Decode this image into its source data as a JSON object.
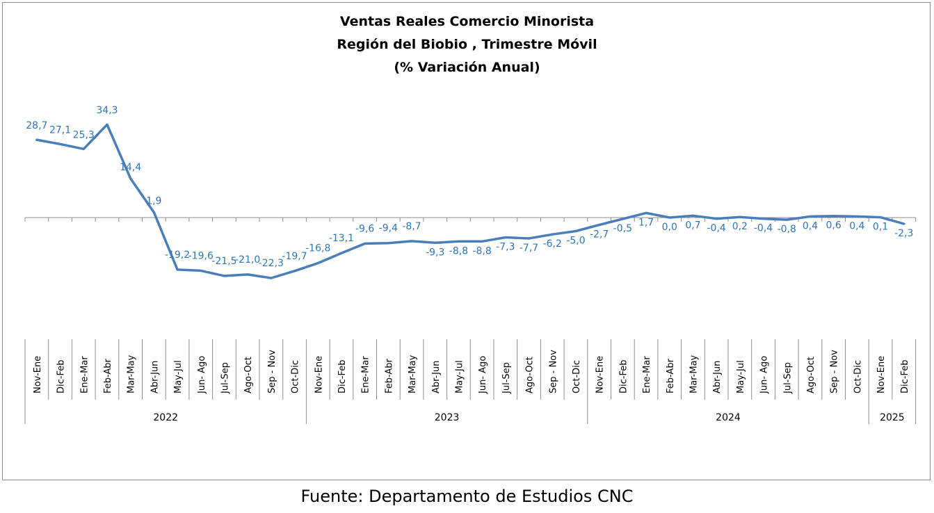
{
  "chart_data": {
    "type": "line",
    "title": [
      "Ventas Reales Comercio Minorista",
      "Región del Biobio , Trimestre Móvil",
      "(% Variación Anual)"
    ],
    "source": "Fuente: Departamento de Estudios CNC",
    "categories": [
      "Nov-Ene",
      "Dic-Feb",
      "Ene-Mar",
      "Feb-Abr",
      "Mar-May",
      "Abr-Jun",
      "May-Jul",
      "Jun- Ago",
      "Jul-Sep",
      "Ago-Oct",
      "Sep - Nov",
      "Oct-Dic",
      "Nov-Ene",
      "Dic-Feb",
      "Ene-Mar",
      "Feb-Abr",
      "Mar-May",
      "Abr-Jun",
      "May-Jul",
      "Jun- Ago",
      "Jul-Sep",
      "Ago-Oct",
      "Sep - Nov",
      "Oct-Dic",
      "Nov-Ene",
      "Dic-Feb",
      "Ene-Mar",
      "Feb-Abr",
      "Mar-May",
      "Abr-Jun",
      "May-Jul",
      "Jun- Ago",
      "Jul-Sep",
      "Ago-Oct",
      "Sep - Nov",
      "Oct-Dic",
      "Nov-Ene",
      "Dic-Feb"
    ],
    "years": [
      {
        "label": "2022",
        "count": 12
      },
      {
        "label": "2023",
        "count": 12
      },
      {
        "label": "2024",
        "count": 12
      },
      {
        "label": "2025",
        "count": 2
      }
    ],
    "values": [
      28.7,
      27.1,
      25.3,
      34.3,
      14.4,
      1.9,
      -19.2,
      -19.6,
      -21.5,
      -21.0,
      -22.3,
      -19.7,
      -16.8,
      -13.1,
      -9.6,
      -9.4,
      -8.7,
      -9.3,
      -8.8,
      -8.8,
      -7.3,
      -7.7,
      -6.2,
      -5.0,
      -2.7,
      -0.5,
      1.7,
      0.0,
      0.7,
      -0.4,
      0.2,
      -0.4,
      -0.8,
      0.4,
      0.6,
      0.4,
      0.1,
      -2.3
    ],
    "labels": [
      "28,7",
      "27,1",
      "25,3",
      "34,3",
      "14,4",
      "1,9",
      "-19,2",
      "-19,6",
      "-21,5",
      "-21,0",
      "-22,3",
      "-19,7",
      "-16,8",
      "-13,1",
      "-9,6",
      "-9,4",
      "-8,7",
      "-9,3",
      "-8,8",
      "-8,8",
      "-7,3",
      "-7,7",
      "-6,2",
      "-5,0",
      "-2,7",
      "-0,5",
      "1,7",
      "0,0",
      "0,7",
      "-0,4",
      "0,2",
      "-0,4",
      "-0,8",
      "0,4",
      "0,6",
      "0,4",
      "0,1",
      "-2,3"
    ],
    "ylim": [
      -40,
      40
    ],
    "grid": false,
    "legend": "none",
    "colors": {
      "line": "#4a7ebb",
      "labels": "#2e75b6",
      "axis": "#8c8c8c"
    }
  }
}
